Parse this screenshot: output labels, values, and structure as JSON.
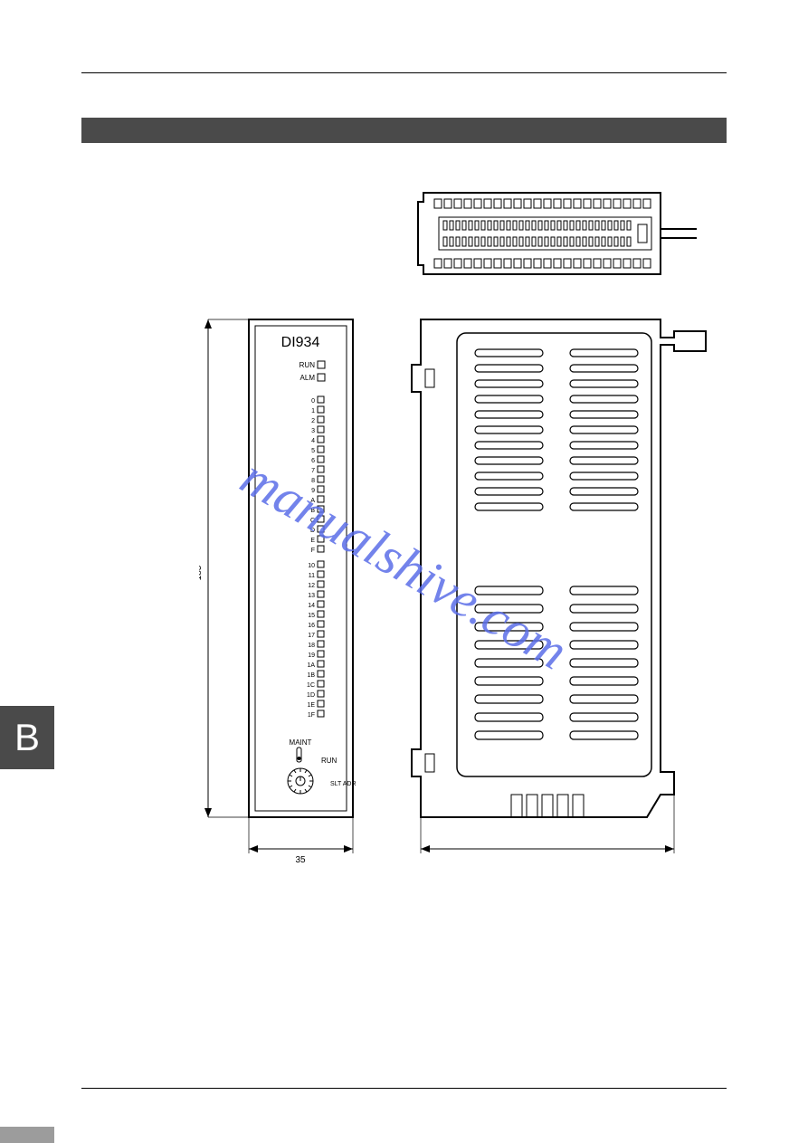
{
  "tab_letter": "B",
  "watermark_text": "manualshive.com",
  "front_panel": {
    "model": "DI934",
    "status_leds": [
      "RUN",
      "ALM"
    ],
    "channel_labels_left": [
      "0",
      "1",
      "2",
      "3",
      "4",
      "5",
      "6",
      "7",
      "8",
      "9",
      "A",
      "B",
      "C",
      "D",
      "E",
      "F"
    ],
    "channel_labels_right": [
      "10",
      "11",
      "12",
      "13",
      "14",
      "15",
      "16",
      "17",
      "18",
      "19",
      "1A",
      "1B",
      "1C",
      "1D",
      "1E",
      "1F"
    ],
    "switch_label_top": "MAINT",
    "switch_label_bottom": "RUN",
    "rotary_label": "SLT ADR"
  },
  "dimensions": {
    "height_mm": "185",
    "width_mm": "35"
  },
  "colors": {
    "line": "#000000",
    "dark_bar": "#4a4a4a",
    "background": "#ffffff",
    "watermark": "#5b6ee8"
  }
}
